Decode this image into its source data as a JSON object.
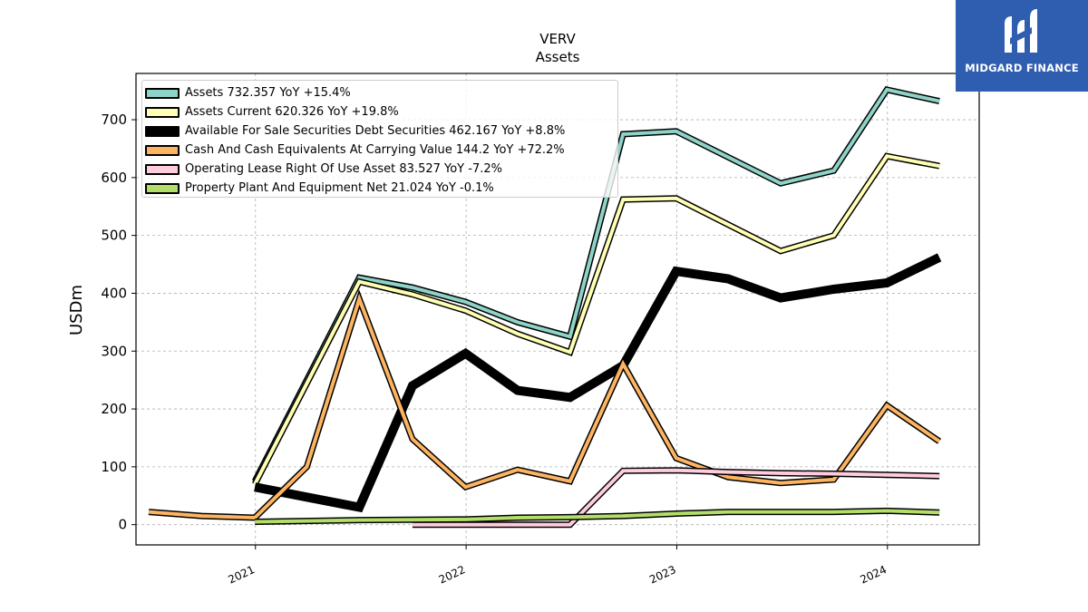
{
  "brand": {
    "name": "MIDGARD FINANCE",
    "color": "#2f5db0"
  },
  "chart_data": {
    "type": "line",
    "title": "VERV",
    "subtitle": "Assets",
    "ylabel": "USDm",
    "xlabel": "",
    "ylim": [
      -35,
      780
    ],
    "yticks": [
      0,
      100,
      200,
      300,
      400,
      500,
      600,
      700
    ],
    "xlim": [
      "2020-06-08",
      "2024-06-08"
    ],
    "xticks": [
      "2021",
      "2022",
      "2023",
      "2024"
    ],
    "grid": true,
    "legend_position": "top-left",
    "series": [
      {
        "name": "Assets  732.357 YoY +15.4%",
        "color": "#8dd3c7",
        "x": [
          "2020-12-31",
          "2021-06-30",
          "2021-09-30",
          "2021-12-31",
          "2022-03-31",
          "2022-06-30",
          "2022-09-30",
          "2022-12-31",
          "2023-06-30",
          "2023-09-30",
          "2023-12-31",
          "2024-03-31"
        ],
        "y": [
          75,
          427,
          410,
          385,
          350,
          325,
          675,
          680,
          590,
          612,
          752,
          732
        ]
      },
      {
        "name": "Assets Current  620.326 YoY +19.8%",
        "color": "#ffffb3",
        "x": [
          "2020-12-31",
          "2021-06-30",
          "2021-09-30",
          "2021-12-31",
          "2022-03-31",
          "2022-06-30",
          "2022-09-30",
          "2022-12-31",
          "2023-06-30",
          "2023-09-30",
          "2023-12-31",
          "2024-03-31"
        ],
        "y": [
          70,
          420,
          398,
          370,
          330,
          298,
          562,
          564,
          473,
          500,
          637,
          620
        ]
      },
      {
        "name": "Available For Sale Securities Debt Securities  462.167 YoY +8.8%",
        "color": "#000000",
        "x": [
          "2020-12-31",
          "2021-06-30",
          "2021-09-30",
          "2021-12-31",
          "2022-03-31",
          "2022-06-30",
          "2022-09-30",
          "2022-12-31",
          "2023-03-31",
          "2023-06-30",
          "2023-09-30",
          "2023-12-31",
          "2024-03-31"
        ],
        "y": [
          65,
          30,
          240,
          296,
          232,
          220,
          275,
          438,
          425,
          392,
          407,
          418,
          462
        ]
      },
      {
        "name": "Cash And Cash Equivalents At Carrying Value  144.2 YoY +72.2%",
        "color": "#fdb462",
        "x": [
          "2020-06-30",
          "2020-09-30",
          "2020-12-31",
          "2021-03-31",
          "2021-06-30",
          "2021-09-30",
          "2021-12-31",
          "2022-03-31",
          "2022-06-30",
          "2022-09-30",
          "2022-12-31",
          "2023-03-31",
          "2023-06-30",
          "2023-09-30",
          "2023-12-31",
          "2024-03-31"
        ],
        "y": [
          22,
          15,
          12,
          100,
          390,
          148,
          65,
          95,
          75,
          278,
          115,
          82,
          72,
          78,
          206,
          144
        ]
      },
      {
        "name": "Operating Lease Right Of Use Asset  83.527 YoY -7.2%",
        "color": "#ffccde",
        "x": [
          "2021-09-30",
          "2021-12-31",
          "2022-03-31",
          "2022-06-30",
          "2022-09-30",
          "2022-12-31",
          "2023-03-31",
          "2023-06-30",
          "2023-09-30",
          "2023-12-31",
          "2024-03-31"
        ],
        "y": [
          0,
          0,
          0,
          0,
          93,
          94,
          91,
          89,
          88,
          86,
          84
        ]
      },
      {
        "name": "Property Plant And Equipment Net  21.024 YoY -0.1%",
        "color": "#b3de69",
        "x": [
          "2020-12-31",
          "2021-06-30",
          "2021-12-31",
          "2022-03-31",
          "2022-06-30",
          "2022-09-30",
          "2022-12-31",
          "2023-03-31",
          "2023-06-30",
          "2023-09-30",
          "2023-12-31",
          "2024-03-31"
        ],
        "y": [
          5,
          8,
          9,
          12,
          13,
          15,
          19,
          22,
          22,
          22,
          24,
          21
        ]
      }
    ]
  }
}
